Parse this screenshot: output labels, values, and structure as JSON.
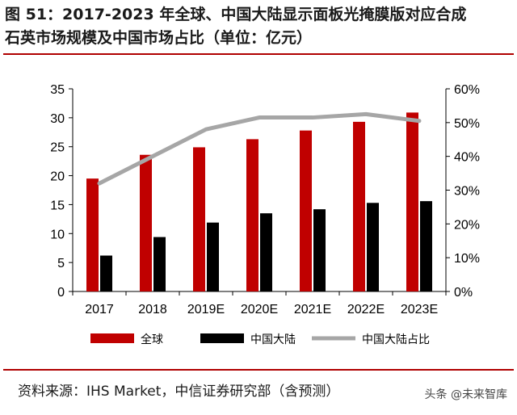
{
  "title": {
    "line1": "图 51：2017-2023 年全球、中国大陆显示面板光掩膜版对应合成",
    "line2": "石英市场规模及中国市场占比（单位：亿元）"
  },
  "source": "资料来源：IHS Market，中信证券研究部（含预测）",
  "watermark": "头条 @未来智库",
  "chart_data": {
    "type": "bar",
    "categories": [
      "2017",
      "2018",
      "2019E",
      "2020E",
      "2021E",
      "2022E",
      "2023E"
    ],
    "series": [
      {
        "name": "全球",
        "type": "bar",
        "axis": "left",
        "color": "#c00000",
        "values": [
          19.5,
          23.6,
          24.9,
          26.3,
          27.8,
          29.3,
          30.9
        ]
      },
      {
        "name": "中国大陆",
        "type": "bar",
        "axis": "left",
        "color": "#000000",
        "values": [
          6.2,
          9.4,
          11.9,
          13.5,
          14.2,
          15.3,
          15.6
        ]
      },
      {
        "name": "中国大陆占比",
        "type": "line",
        "axis": "right",
        "color": "#a6a6a6",
        "values": [
          0.32,
          0.4,
          0.48,
          0.515,
          0.515,
          0.525,
          0.505
        ]
      }
    ],
    "y_left": {
      "min": 0,
      "max": 35,
      "ticks": [
        0,
        5,
        10,
        15,
        20,
        25,
        30,
        35
      ]
    },
    "y_right": {
      "min": 0,
      "max": 0.6,
      "ticks": [
        "0%",
        "10%",
        "20%",
        "30%",
        "40%",
        "50%",
        "60%"
      ]
    },
    "legend_position": "bottom",
    "grid": false
  }
}
